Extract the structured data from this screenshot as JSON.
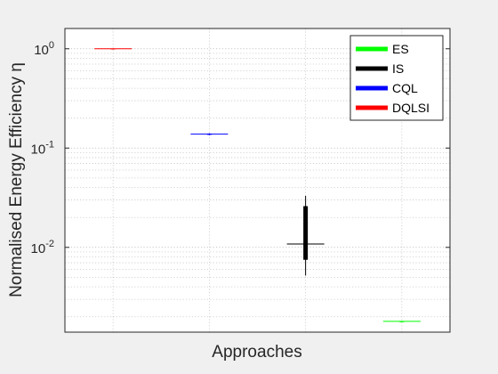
{
  "chart_data": {
    "type": "boxplot",
    "xlabel": "Approaches",
    "ylabel": "Normalised Energy Efficiency η",
    "yscale": "log",
    "ylim": [
      0.0014,
      1.6
    ],
    "yticks": [
      {
        "value": 1,
        "base": "10",
        "exp": "0"
      },
      {
        "value": 0.1,
        "base": "10",
        "exp": "-1"
      },
      {
        "value": 0.01,
        "base": "10",
        "exp": "-2"
      }
    ],
    "grid": true,
    "grid_minor": true,
    "legend_position": "top-right",
    "series": [
      {
        "name": "DQLSI",
        "color": "#ff0000",
        "x_index": 1,
        "median": 1.0,
        "q1": 0.995,
        "q3": 1.005,
        "whisker_low": 0.99,
        "whisker_high": 1.01
      },
      {
        "name": "CQL",
        "color": "#0000ff",
        "x_index": 2,
        "median": 0.138,
        "q1": 0.136,
        "q3": 0.14,
        "whisker_low": 0.135,
        "whisker_high": 0.141
      },
      {
        "name": "IS",
        "color": "#000000",
        "x_index": 3,
        "median": 0.0108,
        "q1": 0.0075,
        "q3": 0.026,
        "whisker_low": 0.0052,
        "whisker_high": 0.033
      },
      {
        "name": "ES",
        "color": "#00ff00",
        "x_index": 4,
        "median": 0.0018,
        "q1": 0.0018,
        "q3": 0.0018,
        "whisker_low": 0.0018,
        "whisker_high": 0.0018
      }
    ],
    "legend_order": [
      "ES",
      "IS",
      "CQL",
      "DQLSI"
    ]
  }
}
